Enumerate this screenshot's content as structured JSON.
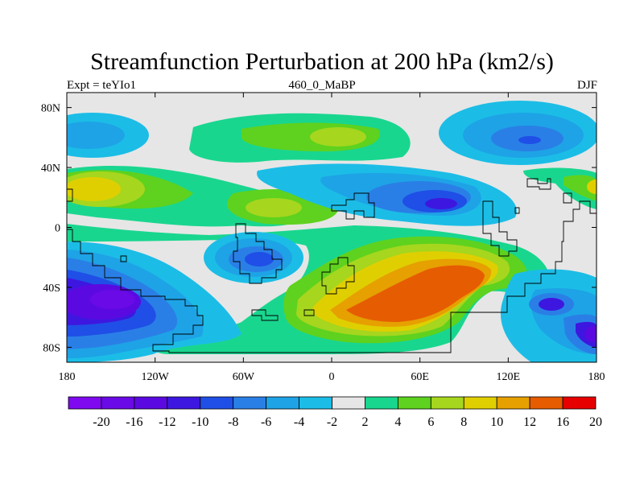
{
  "title": "Streamfunction Perturbation at 200 hPa (km2/s)",
  "subtitle_left": "Expt = teYIo1",
  "subtitle_center": "460_0_MaBP",
  "subtitle_right": "DJF",
  "map": {
    "x_ticks": [
      {
        "lon": -180,
        "label": "180"
      },
      {
        "lon": -120,
        "label": "120W"
      },
      {
        "lon": -60,
        "label": "60W"
      },
      {
        "lon": 0,
        "label": "0"
      },
      {
        "lon": 60,
        "label": "60E"
      },
      {
        "lon": 120,
        "label": "120E"
      },
      {
        "lon": 180,
        "label": "180"
      }
    ],
    "y_ticks": [
      {
        "lat": 80,
        "label": "80N"
      },
      {
        "lat": 40,
        "label": "40N"
      },
      {
        "lat": 0,
        "label": "0"
      },
      {
        "lat": -40,
        "label": "40S"
      },
      {
        "lat": -80,
        "label": "80S"
      }
    ],
    "lon_range": [
      -180,
      180
    ],
    "lat_range": [
      -90,
      90
    ]
  },
  "colorbar": {
    "colors": [
      "#7f0af0",
      "#6a0ae6",
      "#5a0ae0",
      "#3d17e0",
      "#1f4fe6",
      "#2a7fe6",
      "#1ea3e6",
      "#1bbde6",
      "#e6e6e6",
      "#19d68f",
      "#5ed21e",
      "#a6d61e",
      "#e0cf00",
      "#e6a000",
      "#e65c00",
      "#e60000"
    ],
    "labels": [
      "-20",
      "-16",
      "-12",
      "-10",
      "-8",
      "-6",
      "-4",
      "-2",
      "2",
      "4",
      "6",
      "8",
      "10",
      "12",
      "16",
      "20"
    ]
  }
}
